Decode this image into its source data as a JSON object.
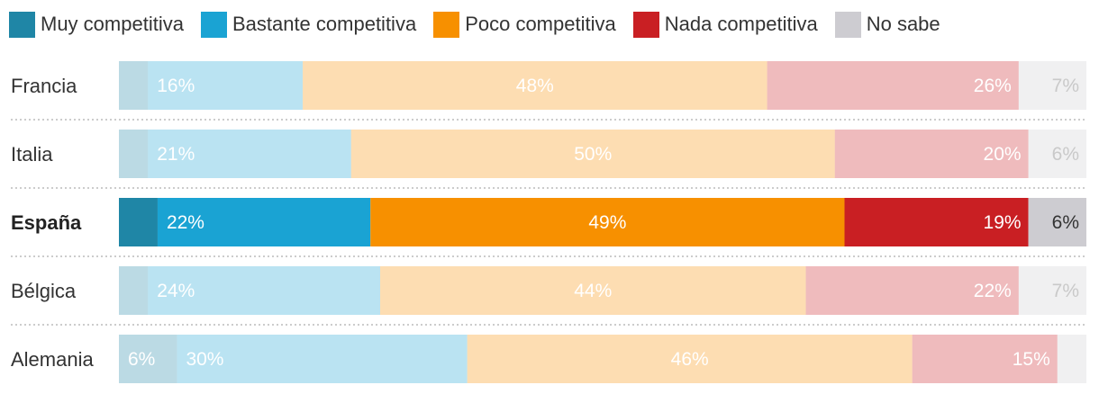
{
  "chart_data": {
    "type": "bar",
    "orientation": "horizontal",
    "stacked": true,
    "legend_position": "top",
    "categories": [
      "Francia",
      "Italia",
      "España",
      "Bélgica",
      "Alemania"
    ],
    "highlighted_category": "España",
    "series": [
      {
        "name": "Muy competitiva",
        "color": "#1f86a6",
        "values": [
          3,
          3,
          4,
          3,
          6
        ],
        "labels": [
          "",
          "",
          "",
          "",
          "6%"
        ]
      },
      {
        "name": "Bastante competitiva",
        "color": "#1aa3d3",
        "values": [
          16,
          21,
          22,
          24,
          30
        ],
        "labels": [
          "16%",
          "21%",
          "22%",
          "24%",
          "30%"
        ]
      },
      {
        "name": "Poco competitiva",
        "color": "#f79000",
        "values": [
          48,
          50,
          49,
          44,
          46
        ],
        "labels": [
          "48%",
          "50%",
          "49%",
          "44%",
          "46%"
        ]
      },
      {
        "name": "Nada competitiva",
        "color": "#c91f23",
        "values": [
          26,
          20,
          19,
          22,
          15
        ],
        "labels": [
          "26%",
          "20%",
          "19%",
          "22%",
          "15%"
        ]
      },
      {
        "name": "No sabe",
        "color": "#cdccd1",
        "values": [
          7,
          6,
          6,
          7,
          3
        ],
        "labels": [
          "7%",
          "6%",
          "6%",
          "7%",
          ""
        ]
      }
    ],
    "xlim": [
      0,
      100
    ],
    "gridlines": false
  }
}
